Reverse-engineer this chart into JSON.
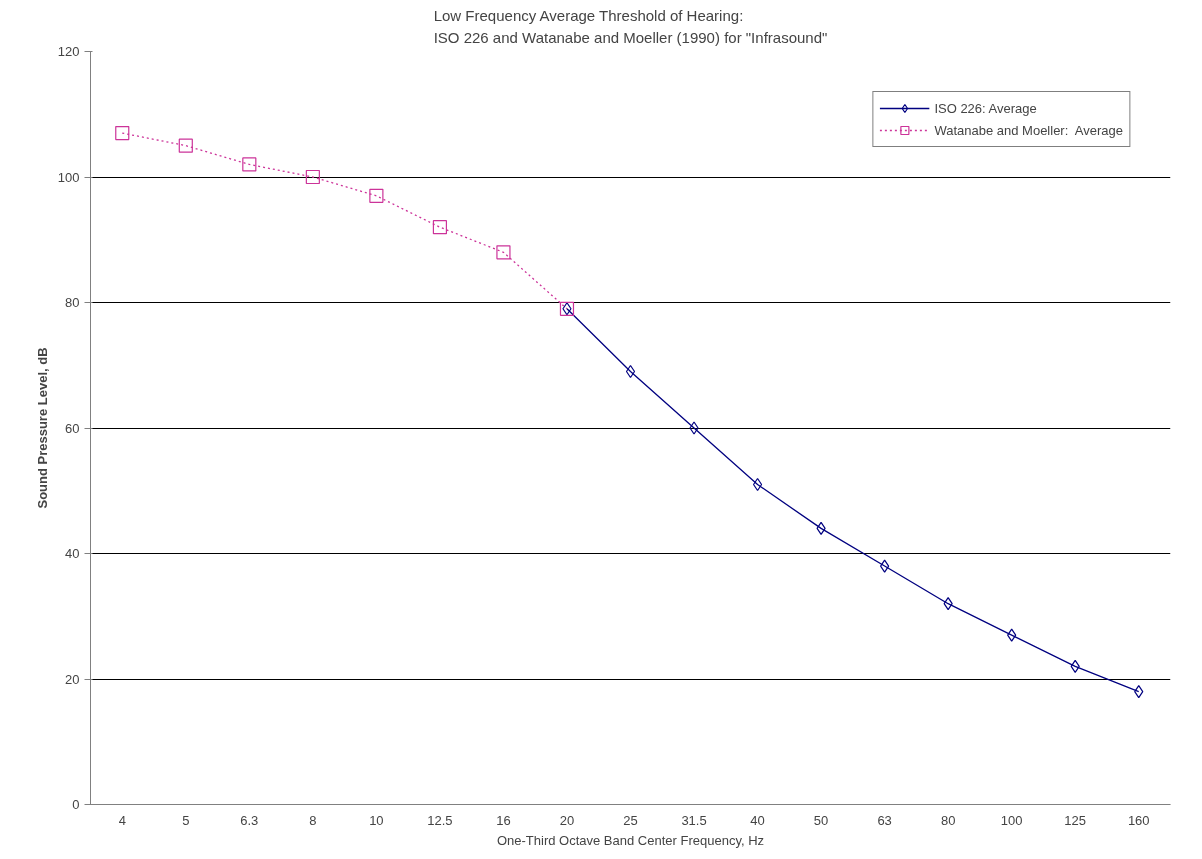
{
  "chart_data": {
    "type": "line",
    "title": "Low Frequency Average Threshold of Hearing:\nISO 226 and Watanabe and Moeller (1990) for \"Infrasound\"",
    "xlabel": "One-Third Octave Band Center Frequency, Hz",
    "ylabel": "Sound Pressure Level, dB",
    "categories": [
      "4",
      "5",
      "6.3",
      "8",
      "10",
      "12.5",
      "16",
      "20",
      "25",
      "31.5",
      "40",
      "50",
      "63",
      "80",
      "100",
      "125",
      "160"
    ],
    "series": [
      {
        "name": "ISO 226: Average",
        "color": "#000080",
        "marker": "diamond",
        "line_style": "solid",
        "values": [
          null,
          null,
          null,
          null,
          null,
          null,
          null,
          79,
          69,
          60,
          51,
          44,
          38,
          32,
          27,
          22,
          18
        ]
      },
      {
        "name": "Watanabe and Moeller:  Average",
        "color": "#cc3399",
        "marker": "square",
        "line_style": "dotted",
        "values": [
          107,
          105,
          102,
          100,
          97,
          92,
          88,
          79,
          null,
          null,
          null,
          null,
          null,
          null,
          null,
          null,
          null
        ]
      }
    ],
    "ylim": [
      0,
      120
    ],
    "yticks": [
      0,
      20,
      40,
      60,
      80,
      100,
      120
    ],
    "grid": "y",
    "legend": "top right"
  }
}
